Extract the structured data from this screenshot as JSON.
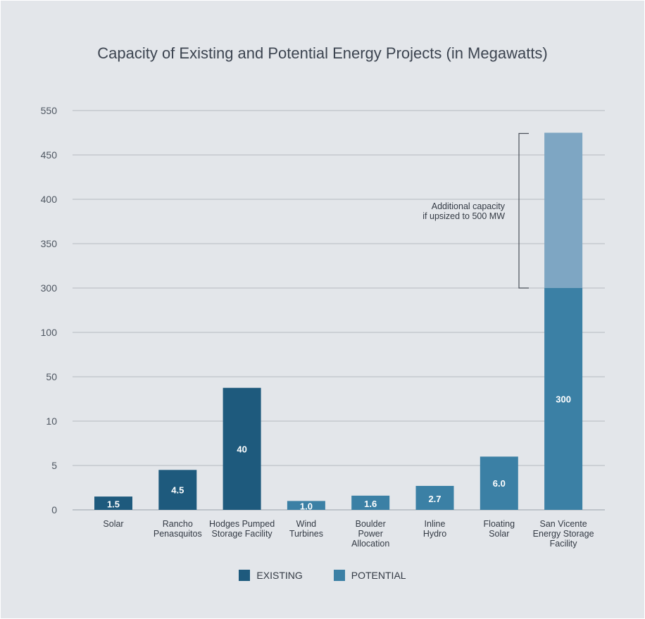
{
  "chart_data": {
    "type": "bar",
    "title": "Capacity of Existing and Potential Energy Projects (in Megawatts)",
    "xlabel": "",
    "ylabel": "",
    "y_ticks": [
      "0",
      "5",
      "10",
      "50",
      "100",
      "300",
      "350",
      "400",
      "450",
      "550"
    ],
    "categories": [
      [
        "Solar"
      ],
      [
        "Rancho",
        "Penasquitos"
      ],
      [
        "Hodges Pumped",
        "Storage Facility"
      ],
      [
        "Wind",
        "Turbines"
      ],
      [
        "Boulder",
        "Power",
        "Allocation"
      ],
      [
        "Inline",
        "Hydro"
      ],
      [
        "Floating",
        "Solar"
      ],
      [
        "San Vicente",
        "Energy Storage",
        "Facility"
      ]
    ],
    "values": [
      1.5,
      4.5,
      40,
      1.0,
      1.6,
      2.7,
      6.0,
      300
    ],
    "value_labels": [
      "1.5",
      "4.5",
      "40",
      "1.0",
      "1.6",
      "2.7",
      "6.0",
      "300"
    ],
    "group": [
      "existing",
      "existing",
      "existing",
      "potential",
      "potential",
      "potential",
      "potential",
      "potential"
    ],
    "additional": {
      "category_index": 7,
      "from": 300,
      "to": 500
    },
    "annotation": [
      "Additional capacity",
      "if upsized to 500 MW"
    ],
    "legend": [
      {
        "key": "existing",
        "label": "EXISTING",
        "color": "#1e5a7d"
      },
      {
        "key": "potential",
        "label": "POTENTIAL",
        "color": "#3b80a5"
      }
    ],
    "colors": {
      "existing": "#1e5a7d",
      "potential": "#3b80a5",
      "additional": "#7ea6c3"
    },
    "grid": true,
    "legend_position": "bottom-center"
  }
}
